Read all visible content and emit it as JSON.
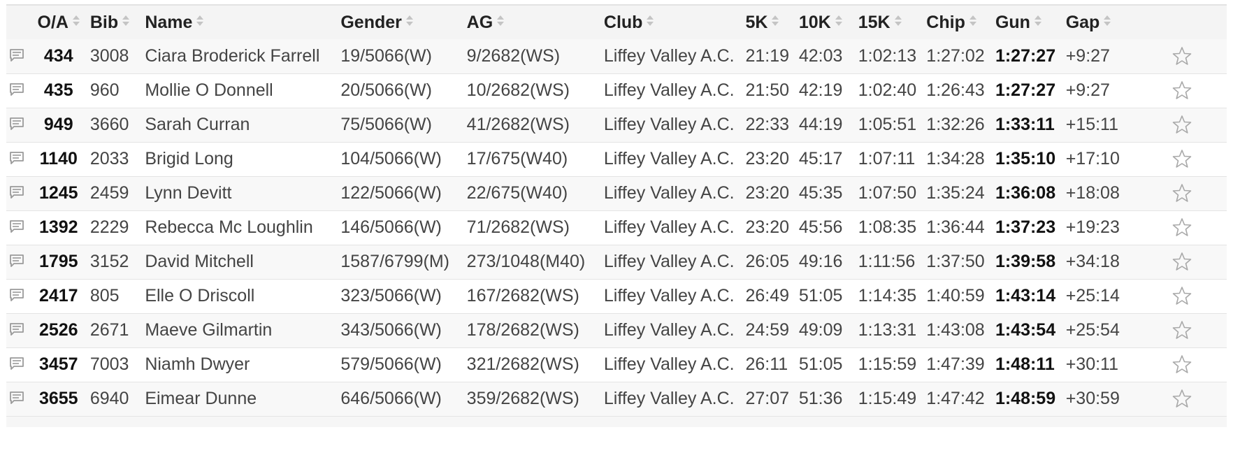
{
  "headers": {
    "oa": "O/A",
    "bib": "Bib",
    "name": "Name",
    "gender": "Gender",
    "ag": "AG",
    "club": "Club",
    "k5": "5K",
    "k10": "10K",
    "k15": "15K",
    "chip": "Chip",
    "gun": "Gun",
    "gap": "Gap"
  },
  "rows": [
    {
      "oa": "434",
      "bib": "3008",
      "name": "Ciara Broderick Farrell",
      "gender": "19/5066(W)",
      "ag": "9/2682(WS)",
      "club": "Liffey Valley A.C.",
      "k5": "21:19",
      "k10": "42:03",
      "k15": "1:02:13",
      "chip": "1:27:02",
      "gun": "1:27:27",
      "gap": "+9:27"
    },
    {
      "oa": "435",
      "bib": "960",
      "name": "Mollie O Donnell",
      "gender": "20/5066(W)",
      "ag": "10/2682(WS)",
      "club": "Liffey Valley A.C.",
      "k5": "21:50",
      "k10": "42:19",
      "k15": "1:02:40",
      "chip": "1:26:43",
      "gun": "1:27:27",
      "gap": "+9:27"
    },
    {
      "oa": "949",
      "bib": "3660",
      "name": "Sarah Curran",
      "gender": "75/5066(W)",
      "ag": "41/2682(WS)",
      "club": "Liffey Valley A.C.",
      "k5": "22:33",
      "k10": "44:19",
      "k15": "1:05:51",
      "chip": "1:32:26",
      "gun": "1:33:11",
      "gap": "+15:11"
    },
    {
      "oa": "1140",
      "bib": "2033",
      "name": "Brigid Long",
      "gender": "104/5066(W)",
      "ag": "17/675(W40)",
      "club": "Liffey Valley A.C.",
      "k5": "23:20",
      "k10": "45:17",
      "k15": "1:07:11",
      "chip": "1:34:28",
      "gun": "1:35:10",
      "gap": "+17:10"
    },
    {
      "oa": "1245",
      "bib": "2459",
      "name": "Lynn Devitt",
      "gender": "122/5066(W)",
      "ag": "22/675(W40)",
      "club": "Liffey Valley A.C.",
      "k5": "23:20",
      "k10": "45:35",
      "k15": "1:07:50",
      "chip": "1:35:24",
      "gun": "1:36:08",
      "gap": "+18:08"
    },
    {
      "oa": "1392",
      "bib": "2229",
      "name": "Rebecca Mc Loughlin",
      "gender": "146/5066(W)",
      "ag": "71/2682(WS)",
      "club": "Liffey Valley A.C.",
      "k5": "23:20",
      "k10": "45:56",
      "k15": "1:08:35",
      "chip": "1:36:44",
      "gun": "1:37:23",
      "gap": "+19:23"
    },
    {
      "oa": "1795",
      "bib": "3152",
      "name": "David Mitchell",
      "gender": "1587/6799(M)",
      "ag": "273/1048(M40)",
      "club": "Liffey Valley A.C.",
      "k5": "26:05",
      "k10": "49:16",
      "k15": "1:11:56",
      "chip": "1:37:50",
      "gun": "1:39:58",
      "gap": "+34:18"
    },
    {
      "oa": "2417",
      "bib": "805",
      "name": "Elle O Driscoll",
      "gender": "323/5066(W)",
      "ag": "167/2682(WS)",
      "club": "Liffey Valley A.C.",
      "k5": "26:49",
      "k10": "51:05",
      "k15": "1:14:35",
      "chip": "1:40:59",
      "gun": "1:43:14",
      "gap": "+25:14"
    },
    {
      "oa": "2526",
      "bib": "2671",
      "name": "Maeve Gilmartin",
      "gender": "343/5066(W)",
      "ag": "178/2682(WS)",
      "club": "Liffey Valley A.C.",
      "k5": "24:59",
      "k10": "49:09",
      "k15": "1:13:31",
      "chip": "1:43:08",
      "gun": "1:43:54",
      "gap": "+25:54"
    },
    {
      "oa": "3457",
      "bib": "7003",
      "name": "Niamh Dwyer",
      "gender": "579/5066(W)",
      "ag": "321/2682(WS)",
      "club": "Liffey Valley A.C.",
      "k5": "26:11",
      "k10": "51:05",
      "k15": "1:15:59",
      "chip": "1:47:39",
      "gun": "1:48:11",
      "gap": "+30:11"
    },
    {
      "oa": "3655",
      "bib": "6940",
      "name": "Eimear Dunne",
      "gender": "646/5066(W)",
      "ag": "359/2682(WS)",
      "club": "Liffey Valley A.C.",
      "k5": "27:07",
      "k10": "51:36",
      "k15": "1:15:49",
      "chip": "1:47:42",
      "gun": "1:48:59",
      "gap": "+30:59"
    }
  ],
  "icons": {
    "row_note": "comment-icon",
    "row_favorite": "star-outline-icon",
    "sort": "sort-icon"
  },
  "colors": {
    "header_bg": "#f4f4f4",
    "row_odd": "#f8f8f8",
    "row_even": "#ffffff",
    "icon_gray": "#9a9a9a"
  }
}
